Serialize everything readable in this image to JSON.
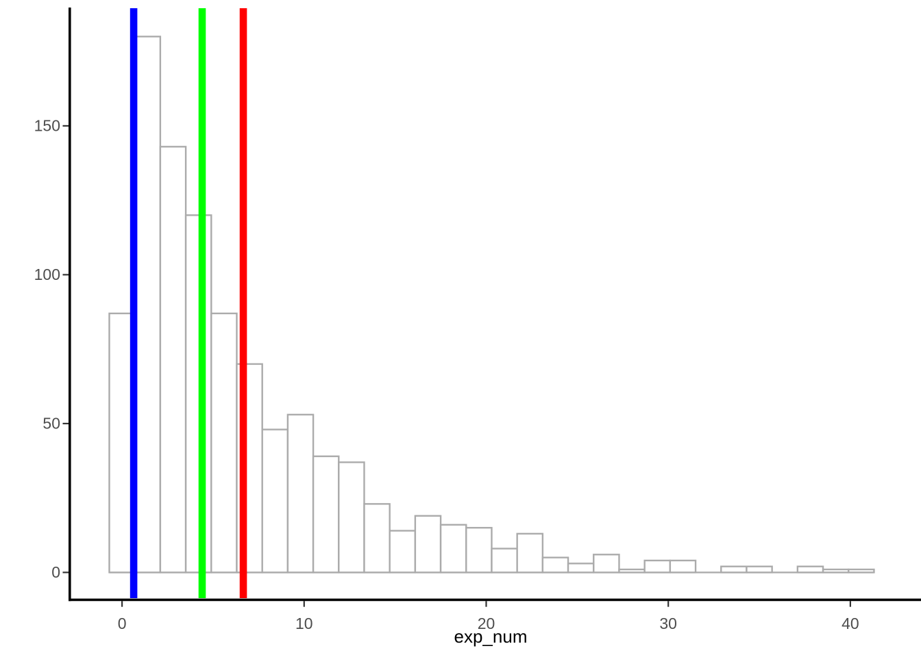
{
  "chart_data": {
    "type": "bar",
    "subtype": "histogram",
    "title": "",
    "xlabel": "exp_num",
    "ylabel": "",
    "x_ticks": [
      0,
      10,
      20,
      30,
      40
    ],
    "y_ticks": [
      0,
      50,
      100,
      150
    ],
    "xlim": [
      -2.8,
      43.8
    ],
    "ylim": [
      -10,
      190
    ],
    "grid": false,
    "legend": false,
    "binwidth": 1.4,
    "bin_centers": [
      0,
      1.4,
      2.8,
      4.2,
      5.6,
      7.0,
      8.4,
      9.8,
      11.2,
      12.6,
      14.0,
      15.4,
      16.8,
      18.2,
      19.6,
      21.0,
      22.4,
      23.8,
      25.2,
      26.6,
      28.0,
      29.4,
      30.8,
      32.2,
      33.6,
      35.0,
      36.4,
      37.8,
      39.2,
      40.6
    ],
    "counts": [
      87,
      180,
      143,
      120,
      87,
      70,
      48,
      53,
      39,
      37,
      23,
      14,
      19,
      16,
      15,
      8,
      13,
      5,
      3,
      6,
      1,
      4,
      4,
      0,
      2,
      2,
      0,
      2,
      1,
      1
    ],
    "vlines": [
      {
        "name": "blue-vline",
        "x": 0.64,
        "color": "#0000FF"
      },
      {
        "name": "green-vline",
        "x": 4.4,
        "color": "#00FF00"
      },
      {
        "name": "red-vline",
        "x": 6.66,
        "color": "#FF0000"
      }
    ],
    "colors": {
      "background": "#FFFFFF",
      "bar_fill": "#FFFFFF",
      "bar_border": "#ABABAB",
      "axis_line": "#000000",
      "tick_mark": "#333333",
      "tick_label": "#4D4D4D",
      "axis_title": "#000000"
    }
  }
}
